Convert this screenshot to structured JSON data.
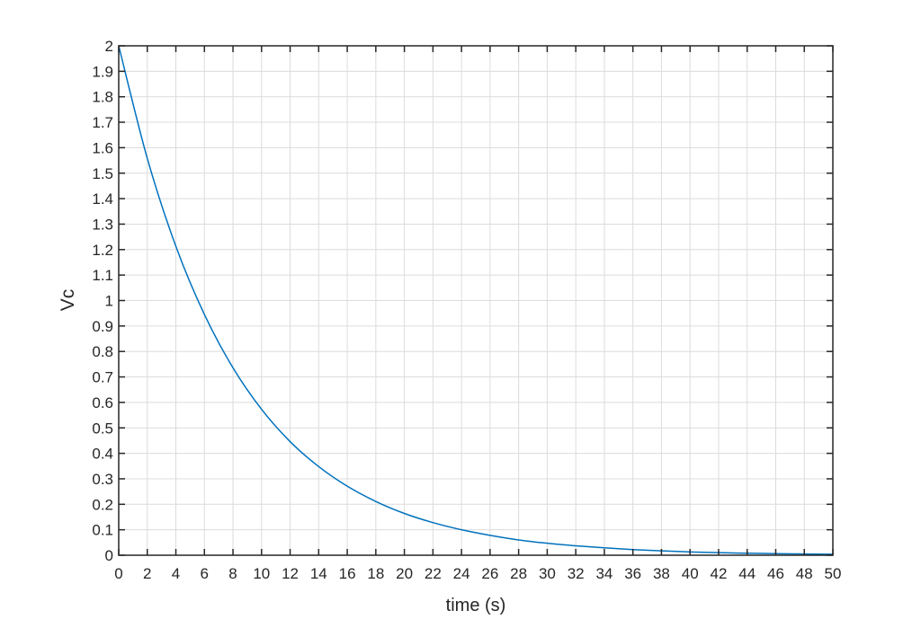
{
  "chart_data": {
    "type": "line",
    "title": "",
    "xlabel": "time (s)",
    "ylabel": "Vc",
    "xlim": [
      0,
      50
    ],
    "ylim": [
      0,
      2
    ],
    "xticks": [
      "0",
      "2",
      "4",
      "6",
      "8",
      "10",
      "12",
      "14",
      "16",
      "18",
      "20",
      "22",
      "24",
      "26",
      "28",
      "30",
      "32",
      "34",
      "36",
      "38",
      "40",
      "42",
      "44",
      "46",
      "48",
      "50"
    ],
    "yticks": [
      "0",
      "0.1",
      "0.2",
      "0.3",
      "0.4",
      "0.5",
      "0.6",
      "0.7",
      "0.8",
      "0.9",
      "1",
      "1.1",
      "1.2",
      "1.3",
      "1.4",
      "1.5",
      "1.6",
      "1.7",
      "1.8",
      "1.9",
      "2"
    ],
    "grid": true,
    "line_color": "#0072bd",
    "series": [
      {
        "x": [
          0,
          2,
          4,
          6,
          8,
          10,
          12,
          14,
          16,
          18,
          20,
          22,
          24,
          26,
          28,
          30,
          32,
          34,
          36,
          38,
          40,
          42,
          44,
          46,
          48,
          50
        ],
        "y": [
          2,
          1.558,
          1.213,
          0.945,
          0.736,
          0.573,
          0.446,
          0.348,
          0.271,
          0.211,
          0.164,
          0.128,
          0.1,
          0.078,
          0.06,
          0.047,
          0.037,
          0.029,
          0.022,
          0.017,
          0.013,
          0.01,
          0.008,
          0.006,
          0.005,
          0.004
        ]
      }
    ]
  }
}
